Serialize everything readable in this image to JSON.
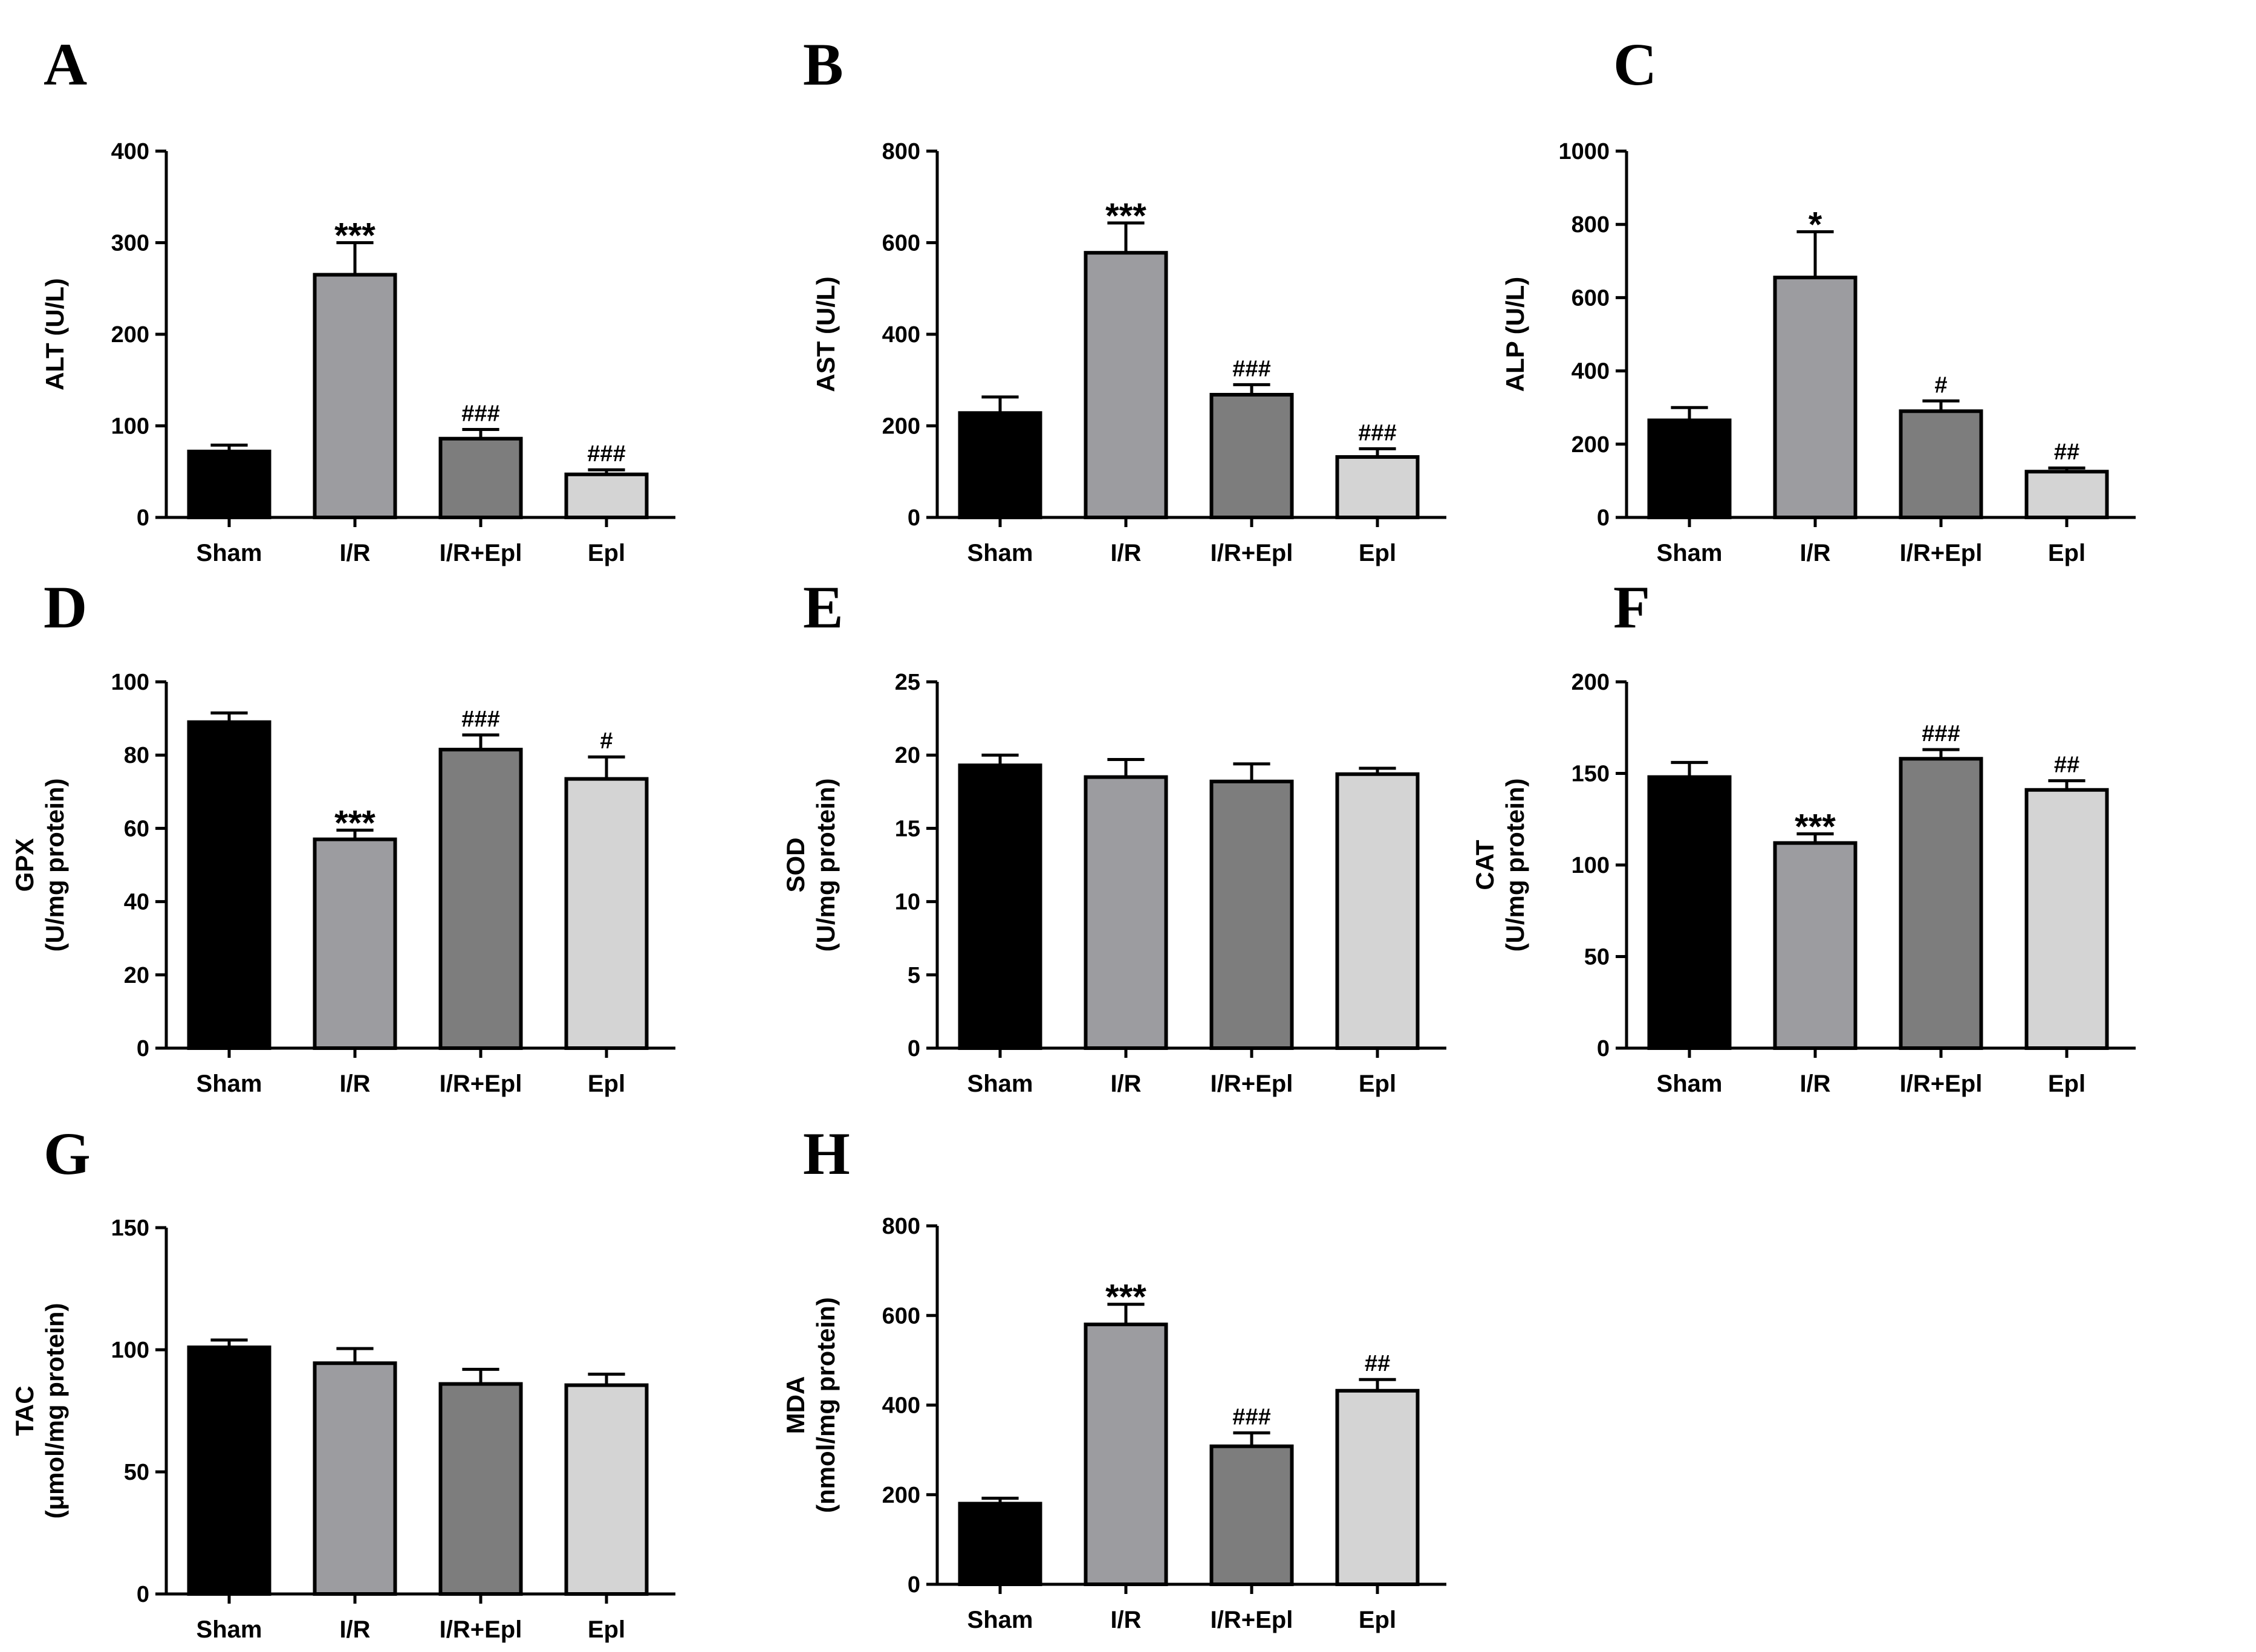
{
  "figure": {
    "categories": [
      "Sham",
      "I/R",
      "I/R+Epl",
      "Epl"
    ],
    "colors": {
      "Sham": "#000000",
      "I/R": "#9c9ca0",
      "I/R+Epl": "#7d7d7d",
      "Epl": "#d4d4d4",
      "axis": "#000000"
    }
  },
  "chart_data": [
    {
      "panel": "A",
      "type": "bar",
      "categories": [
        "Sham",
        "I/R",
        "I/R+Epl",
        "Epl"
      ],
      "values": [
        72,
        265,
        86,
        47
      ],
      "errors": [
        7,
        35,
        10,
        5
      ],
      "significance": [
        "",
        "***",
        "###",
        "###"
      ],
      "ylabel_lines": [
        "ALT (U/L)"
      ],
      "ylim": [
        0,
        400
      ],
      "yticks": [
        0,
        100,
        200,
        300,
        400
      ]
    },
    {
      "panel": "B",
      "type": "bar",
      "categories": [
        "Sham",
        "I/R",
        "I/R+Epl",
        "Epl"
      ],
      "values": [
        228,
        578,
        268,
        132
      ],
      "errors": [
        35,
        65,
        22,
        18
      ],
      "significance": [
        "",
        "***",
        "###",
        "###"
      ],
      "ylabel_lines": [
        "AST (U/L)"
      ],
      "ylim": [
        0,
        800
      ],
      "yticks": [
        0,
        200,
        400,
        600,
        800
      ]
    },
    {
      "panel": "C",
      "type": "bar",
      "categories": [
        "Sham",
        "I/R",
        "I/R+Epl",
        "Epl"
      ],
      "values": [
        265,
        655,
        290,
        125
      ],
      "errors": [
        35,
        125,
        28,
        10
      ],
      "significance": [
        "",
        "*",
        "#",
        "##"
      ],
      "ylabel_lines": [
        "ALP (U/L)"
      ],
      "ylim": [
        0,
        1000
      ],
      "yticks": [
        0,
        200,
        400,
        600,
        800,
        1000
      ]
    },
    {
      "panel": "D",
      "type": "bar",
      "categories": [
        "Sham",
        "I/R",
        "I/R+Epl",
        "Epl"
      ],
      "values": [
        89,
        57,
        81.5,
        73.5
      ],
      "errors": [
        2.5,
        2.5,
        4,
        6
      ],
      "significance": [
        "",
        "***",
        "###",
        "#"
      ],
      "ylabel_lines": [
        "GPX",
        "(U/mg protein)"
      ],
      "ylim": [
        0,
        100
      ],
      "yticks": [
        0,
        20,
        40,
        60,
        80,
        100
      ]
    },
    {
      "panel": "E",
      "type": "bar",
      "categories": [
        "Sham",
        "I/R",
        "I/R+Epl",
        "Epl"
      ],
      "values": [
        19.3,
        18.5,
        18.2,
        18.7
      ],
      "errors": [
        0.7,
        1.2,
        1.2,
        0.4
      ],
      "significance": [
        "",
        "",
        "",
        ""
      ],
      "ylabel_lines": [
        "SOD",
        "(U/mg protein)"
      ],
      "ylim": [
        0,
        25
      ],
      "yticks": [
        0,
        5,
        10,
        15,
        20,
        25
      ]
    },
    {
      "panel": "F",
      "type": "bar",
      "categories": [
        "Sham",
        "I/R",
        "I/R+Epl",
        "Epl"
      ],
      "values": [
        148,
        112,
        158,
        141
      ],
      "errors": [
        8,
        5,
        5,
        5
      ],
      "significance": [
        "",
        "***",
        "###",
        "##"
      ],
      "ylabel_lines": [
        "CAT",
        "(U/mg protein)"
      ],
      "ylim": [
        0,
        200
      ],
      "yticks": [
        0,
        50,
        100,
        150,
        200
      ]
    },
    {
      "panel": "G",
      "type": "bar",
      "categories": [
        "Sham",
        "I/R",
        "I/R+Epl",
        "Epl"
      ],
      "values": [
        101,
        94.5,
        86,
        85.5
      ],
      "errors": [
        3,
        6,
        6,
        4.5
      ],
      "significance": [
        "",
        "",
        "",
        ""
      ],
      "ylabel_lines": [
        "TAC",
        "(μmol/mg protein)"
      ],
      "ylim": [
        0,
        150
      ],
      "yticks": [
        0,
        50,
        100,
        150
      ]
    },
    {
      "panel": "H",
      "type": "bar",
      "categories": [
        "Sham",
        "I/R",
        "I/R+Epl",
        "Epl"
      ],
      "values": [
        180,
        580,
        308,
        432
      ],
      "errors": [
        12,
        45,
        30,
        25
      ],
      "significance": [
        "",
        "***",
        "###",
        "##"
      ],
      "ylabel_lines": [
        "MDA",
        "(nmol/mg protein)"
      ],
      "ylim": [
        0,
        800
      ],
      "yticks": [
        0,
        200,
        400,
        600,
        800
      ]
    }
  ]
}
